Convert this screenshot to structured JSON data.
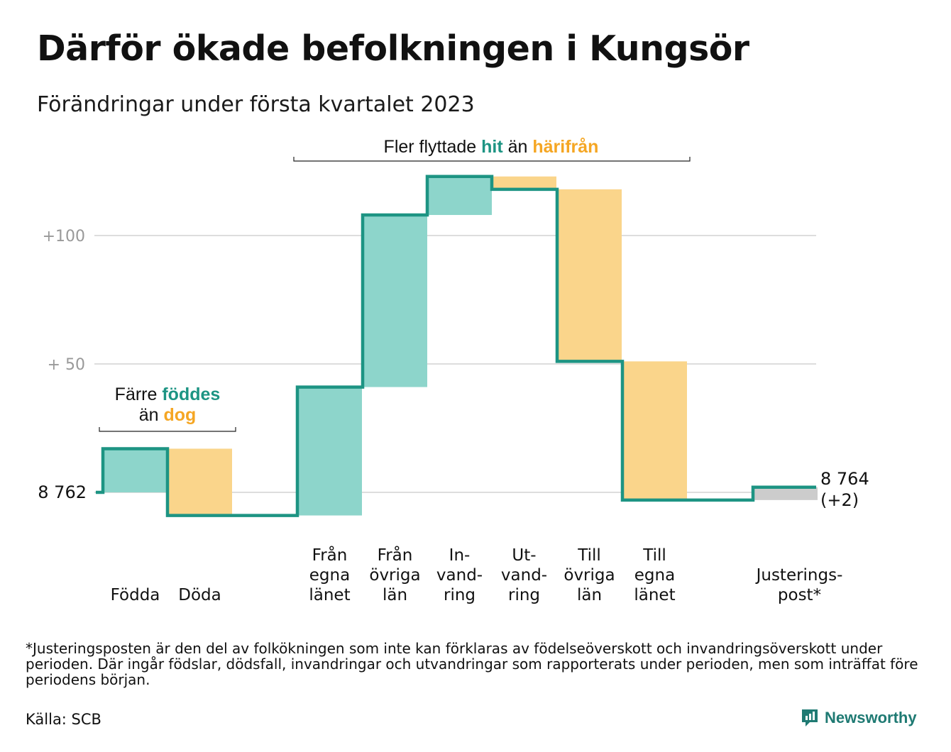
{
  "title": "Därför ökade befolkningen i Kungsör",
  "subtitle": "Förändringar under första kvartalet 2023",
  "footnote": "*Justeringsposten är den del av folkökningen som inte kan förklaras av födelseöverskott och invandringsöverskott under perioden. Där ingår födslar, dödsfall, invandringar och utvandringar som rapporterats under perioden, men som inträffat före periodens början.",
  "source": "Källa: SCB",
  "brand": "Newsworthy",
  "colors": {
    "positive": "#8dd5cb",
    "negative": "#fad58b",
    "adjustment": "#cccccc",
    "line": "#1d9483",
    "accent_teal": "#1d9483",
    "accent_orange": "#f5a623",
    "grid": "#dddddd",
    "tick": "#999999"
  },
  "chart_data": {
    "type": "waterfall",
    "start_value": 8762,
    "start_label": "8 762",
    "end_value": 8764,
    "end_label": "8 764",
    "end_change_label": "(+2)",
    "ylim": [
      -10,
      125
    ],
    "yticks": [
      {
        "value": 100,
        "label": "+100"
      },
      {
        "value": 50,
        "label": "+ 50"
      },
      {
        "value": 0,
        "label": ""
      }
    ],
    "steps": [
      {
        "label": "Födda",
        "value": 17,
        "kind": "positive"
      },
      {
        "label": "Döda",
        "value": -26,
        "kind": "negative"
      },
      {
        "label": "Från egna länet",
        "value": 50,
        "kind": "positive"
      },
      {
        "label": "Från övriga län",
        "value": 67,
        "kind": "positive"
      },
      {
        "label": "In-vand-ring",
        "value": 15,
        "kind": "positive"
      },
      {
        "label": "Ut-vand-ring",
        "value": -5,
        "kind": "negative"
      },
      {
        "label": "Till övriga län",
        "value": -67,
        "kind": "negative"
      },
      {
        "label": "Till egna länet",
        "value": -54,
        "kind": "negative"
      },
      {
        "label": "Justerings-post*",
        "value": 5,
        "kind": "adjustment"
      }
    ],
    "category_labels": [
      [
        "Födda"
      ],
      [
        "Döda"
      ],
      [
        "Från",
        "egna",
        "länet"
      ],
      [
        "Från",
        "övriga",
        "län"
      ],
      [
        "In-",
        "vand-",
        "ring"
      ],
      [
        "Ut-",
        "vand-",
        "ring"
      ],
      [
        "Till",
        "övriga",
        "län"
      ],
      [
        "Till",
        "egna",
        "länet"
      ],
      [
        "Justerings-",
        "post*"
      ]
    ],
    "annotations": [
      {
        "parts": [
          {
            "text": "Färre ",
            "style": "plain"
          },
          {
            "text": "föddes",
            "style": "teal"
          }
        ],
        "parts2": [
          {
            "text": "än ",
            "style": "plain"
          },
          {
            "text": "dog",
            "style": "orange"
          }
        ]
      },
      {
        "parts": [
          {
            "text": "Fler flyttade ",
            "style": "plain"
          },
          {
            "text": "hit",
            "style": "teal"
          },
          {
            "text": " än ",
            "style": "plain"
          },
          {
            "text": "härifrån",
            "style": "orange"
          }
        ]
      }
    ]
  }
}
